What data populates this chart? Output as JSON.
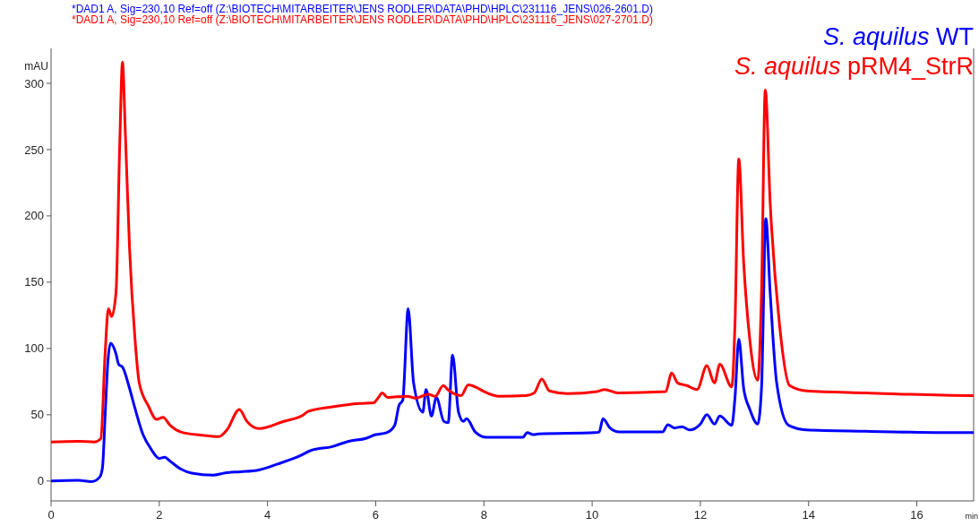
{
  "chart_data": {
    "type": "line",
    "xlabel": "min",
    "ylabel": "mAU",
    "annotations": [
      "*DAD1 A, Sig=230,10 Ref=off (Z:\\BIOTECH\\MITARBEITER\\JENS RODLER\\DATA\\PHD\\HPLC\\231116_JENS\\026-2601.D)",
      "*DAD1 A, Sig=230,10 Ref=off (Z:\\BIOTECH\\MITARBEITER\\JENS RODLER\\DATA\\PHD\\HPLC\\231116_JENS\\027-2701.D)"
    ],
    "xlim": [
      0,
      17.05
    ],
    "xticks": [
      0,
      2,
      4,
      6,
      8,
      10,
      12,
      14,
      16
    ],
    "ylim": [
      -15,
      325
    ],
    "yticks": [
      0,
      50,
      100,
      150,
      200,
      250,
      300
    ],
    "grid": false,
    "legend": "top right",
    "marker": "none",
    "line_style": "solid",
    "series": [
      {
        "name": "S. aquilus WT",
        "color": "#0000ff",
        "x": [
          0,
          0.5,
          0.75,
          0.9,
          0.95,
          1.0,
          1.05,
          1.1,
          1.2,
          1.25,
          1.32,
          1.45,
          1.55,
          1.7,
          1.85,
          2.0,
          2.1,
          2.2,
          2.4,
          2.6,
          3.0,
          3.2,
          3.5,
          3.8,
          4.2,
          4.6,
          4.8,
          5.2,
          5.5,
          5.8,
          6.0,
          6.2,
          6.35,
          6.43,
          6.5,
          6.6,
          6.7,
          6.87,
          6.93,
          7.03,
          7.12,
          7.26,
          7.34,
          7.42,
          7.53,
          7.62,
          7.68,
          7.84,
          8.05,
          8.72,
          8.8,
          8.91,
          9.0,
          10.05,
          10.13,
          10.2,
          10.33,
          10.5,
          11.3,
          11.4,
          11.52,
          11.66,
          11.8,
          12.0,
          12.12,
          12.26,
          12.36,
          12.58,
          12.64,
          12.71,
          12.8,
          12.91,
          13.06,
          13.13,
          13.21,
          13.29,
          13.41,
          13.63,
          13.96,
          15.06,
          16.97,
          17.05
        ],
        "values": [
          0,
          0.5,
          -0.5,
          3,
          10,
          50,
          90,
          104,
          96,
          88,
          86,
          70,
          55,
          35,
          24,
          17,
          18,
          15,
          9,
          6,
          4.5,
          6,
          7,
          8,
          13,
          19,
          23,
          26,
          30,
          32,
          35,
          36.5,
          42,
          57,
          61,
          130,
          74,
          52,
          69,
          49,
          63,
          45,
          44,
          95,
          52,
          45,
          47,
          37,
          33,
          33,
          36.5,
          35,
          35.5,
          36.5,
          37,
          47,
          40,
          37,
          37,
          42.5,
          40,
          41,
          38.5,
          43,
          50,
          43,
          49,
          42,
          63,
          107,
          70,
          54.5,
          43,
          70,
          198,
          142,
          74,
          42,
          38.5,
          37.5,
          36.5,
          36.5
        ]
      },
      {
        "name": "S. aquilus pRM4_StrR",
        "color": "#ff0000",
        "x": [
          0,
          0.5,
          0.8,
          0.92,
          1.0,
          1.06,
          1.12,
          1.2,
          1.27,
          1.32,
          1.37,
          1.45,
          1.55,
          1.63,
          1.8,
          1.95,
          2.07,
          2.2,
          2.4,
          2.8,
          3.1,
          3.25,
          3.48,
          3.62,
          3.85,
          4.3,
          4.65,
          4.75,
          5.2,
          5.7,
          5.96,
          6.05,
          6.12,
          6.22,
          6.58,
          6.74,
          6.97,
          7.1,
          7.25,
          7.33,
          7.58,
          7.71,
          7.89,
          8.0,
          8.27,
          8.77,
          8.93,
          9.07,
          9.21,
          9.54,
          10.09,
          10.23,
          10.48,
          11.36,
          11.47,
          11.58,
          11.75,
          11.94,
          12.12,
          12.26,
          12.36,
          12.58,
          12.64,
          12.71,
          12.8,
          12.91,
          13.06,
          13.13,
          13.2,
          13.29,
          13.46,
          13.65,
          13.96,
          15.06,
          16.97,
          17.05
        ],
        "values": [
          29.5,
          30,
          29.5,
          32,
          97,
          130,
          124,
          142,
          255,
          316,
          266,
          176,
          108,
          74,
          56.5,
          46.5,
          48,
          42,
          37,
          34.5,
          33.5,
          38.5,
          54,
          45,
          39.5,
          45,
          49.5,
          52.5,
          56,
          58.5,
          59,
          63,
          66.5,
          63,
          64,
          62.5,
          65.5,
          64,
          72,
          69,
          64.5,
          72.5,
          70,
          67.5,
          64,
          64.5,
          66.5,
          77,
          68,
          66,
          67.5,
          69,
          66.5,
          67.5,
          81.5,
          74,
          72,
          69,
          87,
          74,
          88,
          71,
          119,
          243,
          165,
          108,
          76,
          142,
          295,
          210,
          119,
          72,
          68,
          66.5,
          64.5,
          64.5
        ]
      }
    ]
  }
}
